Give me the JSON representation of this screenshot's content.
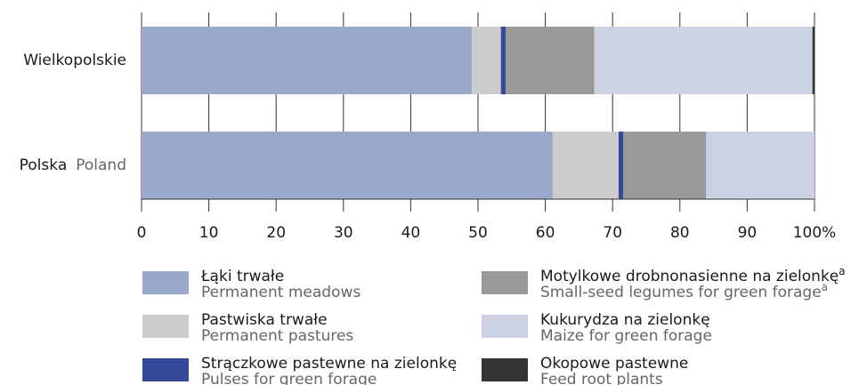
{
  "chart_data": {
    "type": "stacked-barh",
    "categories": [
      [
        "Wielkopolskie"
      ],
      [
        "Polska",
        "Poland"
      ]
    ],
    "series": [
      {
        "name": "Łąki trwałe",
        "name_en": "Permanent meadows",
        "color": "#9aa8cc",
        "values": [
          49.1,
          61.1
        ]
      },
      {
        "name": "Pastwiska trwałe",
        "name_en": "Permanent pastures",
        "color": "#cccccc",
        "values": [
          4.3,
          9.8
        ]
      },
      {
        "name": "Strączkowe pastewne na zielonkę",
        "name_en": "Pulses for green forage",
        "color": "#344a96",
        "values": [
          0.7,
          0.7
        ]
      },
      {
        "name": "Motylkowe drobnonasienne na zielonkę",
        "name_en": "Small-seed legumes for green forage",
        "note_mark": "a",
        "color": "#999999",
        "values": [
          13.2,
          12.3
        ]
      },
      {
        "name": "Kukurydza na zielonkę",
        "name_en": "Maize for green forage",
        "color": "#ccd1e6",
        "values": [
          32.4,
          16.1
        ]
      },
      {
        "name": "Okopowe pastewne",
        "name_en": "Feed root plants",
        "color": "#333333",
        "values": [
          0.3,
          0
        ]
      }
    ],
    "xlim": [
      0,
      100
    ],
    "xticks": [
      0,
      10,
      20,
      30,
      40,
      50,
      60,
      70,
      80,
      90,
      {
        "value": 100,
        "label": "100%"
      }
    ],
    "grid": true
  }
}
